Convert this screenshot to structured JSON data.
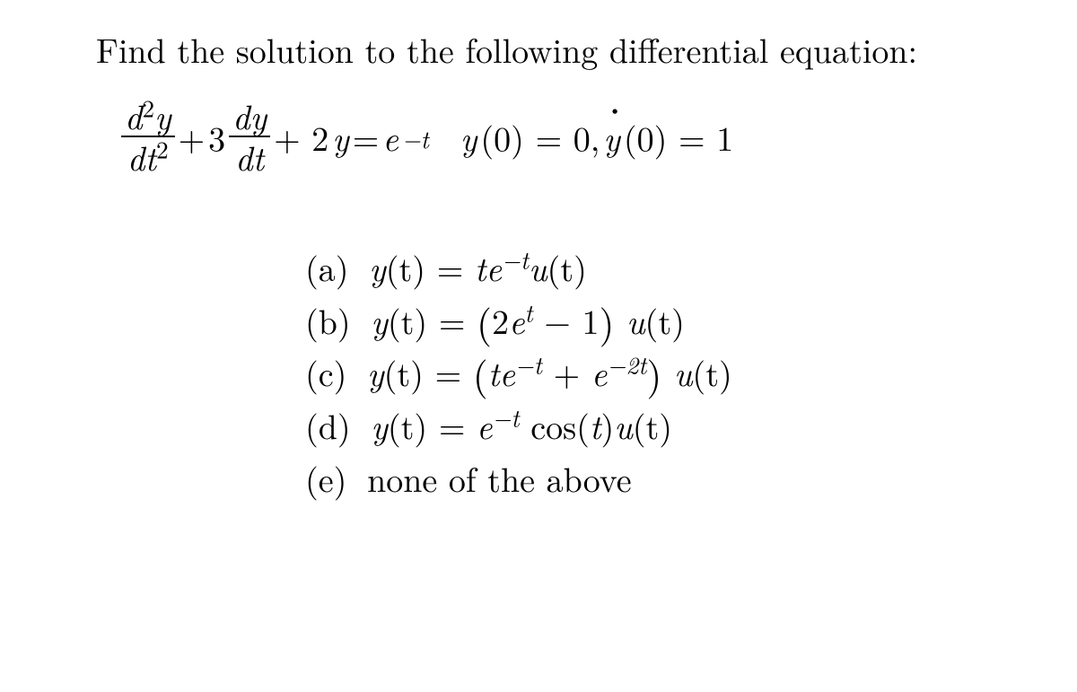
{
  "problem": {
    "text": "Find the solution to the following differential equation:"
  },
  "equation": {
    "d2y": "d",
    "sup2": "2",
    "y": "y",
    "dt2_d": "dt",
    "dt2_sup": "2",
    "plus": " + ",
    "coef3": "3",
    "dy": "dy",
    "dt": "dt",
    "plus2": " + 2",
    "y2": "y",
    "eq": " = ",
    "e": "e",
    "neg_t": "−t",
    "ic1_y": "y",
    "ic1_rest": "(0) = 0,  ",
    "ic2_y": "y",
    "ic2_rest": "(0) = 1"
  },
  "options": {
    "a": {
      "label": "(a)",
      "lhs_y": "y",
      "lhs_t": "(t) = ",
      "rhs_te": "te",
      "rhs_exp": "−t",
      "rhs_u": "u",
      "rhs_tail": "(t)"
    },
    "b": {
      "label": "(b)",
      "lhs_y": "y",
      "lhs_t": "(t) = ",
      "open": "(",
      "two_e": "2e",
      "exp_t": "t",
      "minus1": " − 1",
      "close": ")",
      "u": " u",
      "tail": "(t)"
    },
    "c": {
      "label": "(c)",
      "lhs_y": "y",
      "lhs_t": "(t) = ",
      "open": "(",
      "te": "te",
      "exp1": "−t",
      "plus": " + ",
      "e2": "e",
      "exp2": "−2t",
      "close": ")",
      "u": " u",
      "tail": "(t)"
    },
    "d": {
      "label": "(d)",
      "lhs_y": "y",
      "lhs_t": "(t) = ",
      "e": "e",
      "exp": "−t",
      "cos": " cos(",
      "t": "t",
      "closeparen": ")",
      "u": "u",
      "tail": "(t)"
    },
    "e": {
      "label": "(e)",
      "text": "none of the above"
    }
  },
  "colors": {
    "background": "#ffffff",
    "text": "#000000"
  },
  "typography": {
    "base_fontsize_pt": 28,
    "font_family": "Computer Modern / Latin Modern"
  }
}
